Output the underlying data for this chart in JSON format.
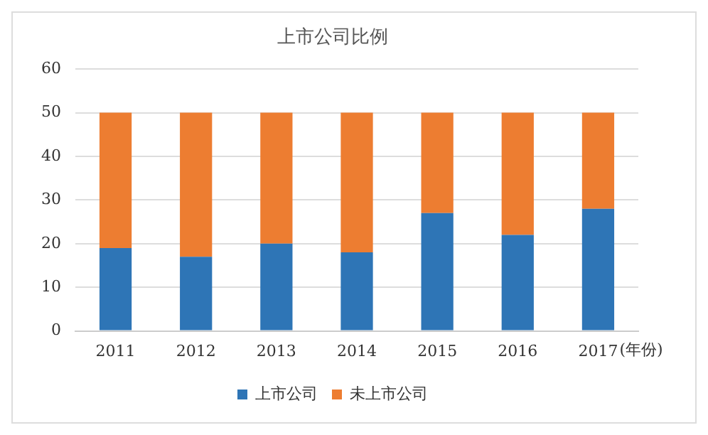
{
  "chart_data": {
    "type": "bar",
    "title": "上市公司比例",
    "xlabel": "(年份)",
    "categories": [
      "2011",
      "2012",
      "2013",
      "2014",
      "2015",
      "2016",
      "2017"
    ],
    "stacked": true,
    "series": [
      {
        "name": "上市公司",
        "color": "#2e75b6",
        "values": [
          19,
          17,
          20,
          18,
          27,
          22,
          28
        ]
      },
      {
        "name": "未上市公司",
        "color": "#ed7d31",
        "values": [
          31,
          33,
          30,
          32,
          23,
          28,
          22
        ]
      }
    ],
    "ylim": [
      0,
      60
    ],
    "yticks": [
      0,
      10,
      20,
      30,
      40,
      50,
      60
    ],
    "grid": "y",
    "legend": "bottom"
  }
}
